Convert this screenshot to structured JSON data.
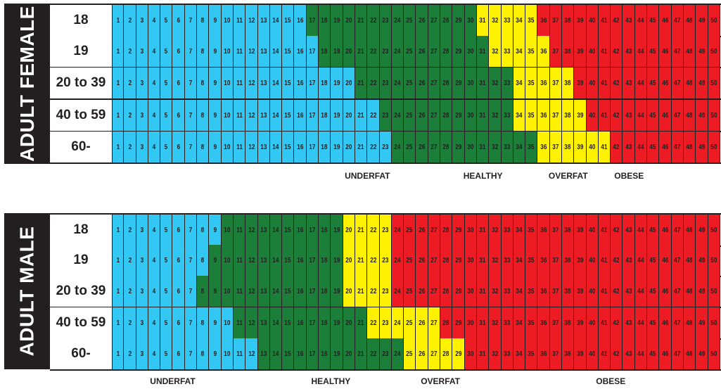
{
  "chart_data": [
    {
      "type": "heatmap",
      "title": "ADULT FEMALE",
      "x": [
        1,
        2,
        3,
        4,
        5,
        6,
        7,
        8,
        9,
        10,
        11,
        12,
        13,
        14,
        15,
        16,
        17,
        18,
        19,
        20,
        21,
        22,
        23,
        24,
        25,
        26,
        27,
        28,
        29,
        30,
        31,
        32,
        33,
        34,
        35,
        36,
        37,
        38,
        39,
        40,
        41,
        42,
        43,
        44,
        45,
        46,
        47,
        48,
        49,
        50
      ],
      "category_labels": [
        "UNDERFAT",
        "HEALTHY",
        "OVERFAT",
        "OBESE"
      ],
      "category_colors": [
        "#33c8f4",
        "#1b7f3a",
        "#fff200",
        "#ed1c24"
      ],
      "rows": [
        {
          "age": "18",
          "thresholds": [
            17,
            31,
            36
          ]
        },
        {
          "age": "19",
          "thresholds": [
            18,
            32,
            37
          ]
        },
        {
          "age": "20 to 39",
          "thresholds": [
            21,
            34,
            39
          ]
        },
        {
          "age": "40 to 59",
          "thresholds": [
            23,
            34,
            40
          ]
        },
        {
          "age": "60-",
          "thresholds": [
            24,
            36,
            42
          ]
        }
      ],
      "label_positions": [
        21.5,
        31,
        38,
        43
      ]
    },
    {
      "type": "heatmap",
      "title": "ADULT MALE",
      "x": [
        1,
        2,
        3,
        4,
        5,
        6,
        7,
        8,
        9,
        10,
        11,
        12,
        13,
        14,
        15,
        16,
        17,
        18,
        19,
        20,
        21,
        22,
        23,
        24,
        25,
        26,
        27,
        28,
        29,
        30,
        31,
        32,
        33,
        34,
        35,
        36,
        37,
        38,
        39,
        40,
        41,
        42,
        43,
        44,
        45,
        46,
        47,
        48,
        49,
        50
      ],
      "category_labels": [
        "UNDERFAT",
        "HEALTHY",
        "OVERFAT",
        "OBESE"
      ],
      "category_colors": [
        "#33c8f4",
        "#1b7f3a",
        "#fff200",
        "#ed1c24"
      ],
      "rows": [
        {
          "age": "18",
          "thresholds": [
            10,
            20,
            24
          ]
        },
        {
          "age": "19",
          "thresholds": [
            9,
            20,
            24
          ]
        },
        {
          "age": "20 to 39",
          "thresholds": [
            8,
            20,
            24
          ]
        },
        {
          "age": "40 to 59",
          "thresholds": [
            11,
            22,
            28
          ]
        },
        {
          "age": "60-",
          "thresholds": [
            13,
            25,
            30
          ]
        }
      ],
      "label_positions": [
        5.5,
        18.5,
        27.5,
        41.5
      ]
    }
  ]
}
